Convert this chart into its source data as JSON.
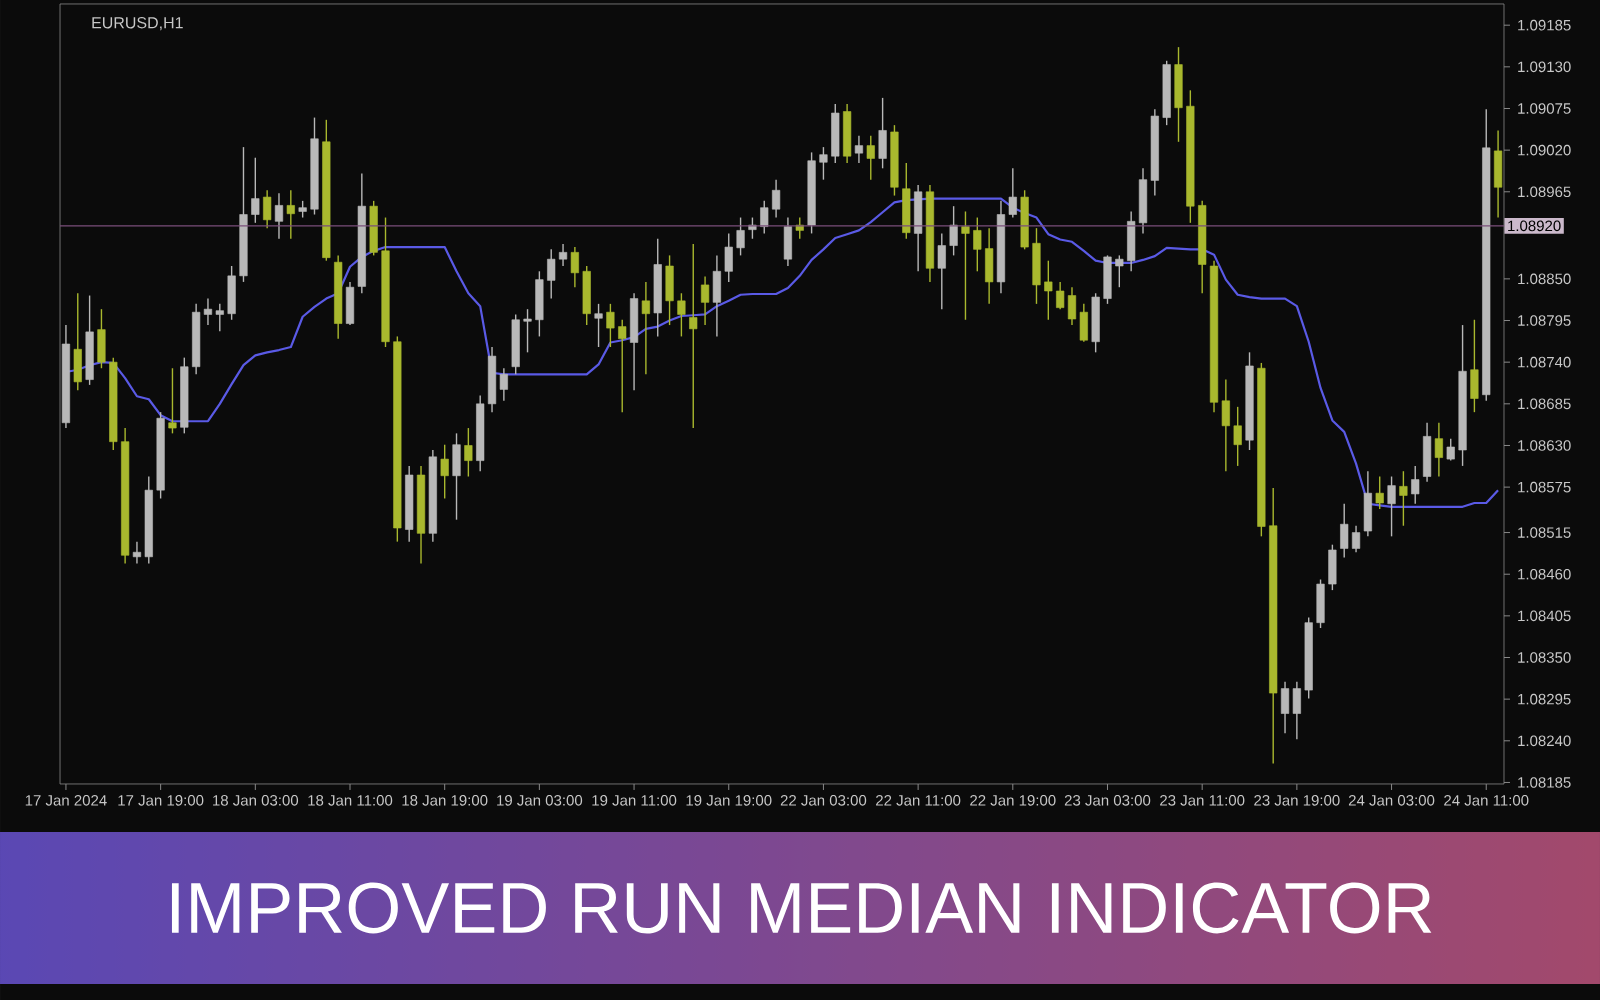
{
  "chart_data": {
    "type": "candlestick",
    "title": "IMPROVED RUN MEDIAN INDICATOR",
    "subtitle": "EURUSD,H1",
    "categories": [
      "17 Jan 2024",
      null,
      null,
      null,
      null,
      null,
      null,
      null,
      "17 Jan 19:00",
      null,
      null,
      null,
      null,
      null,
      null,
      null,
      "18 Jan 03:00",
      null,
      null,
      null,
      null,
      null,
      null,
      null,
      "18 Jan 11:00",
      null,
      null,
      null,
      null,
      null,
      null,
      null,
      "18 Jan 19:00",
      null,
      null,
      null,
      null,
      null,
      null,
      null,
      "19 Jan 03:00",
      null,
      null,
      null,
      null,
      null,
      null,
      null,
      "19 Jan 11:00",
      null,
      null,
      null,
      null,
      null,
      null,
      null,
      "19 Jan 19:00",
      null,
      null,
      null,
      null,
      null,
      null,
      null,
      "22 Jan 03:00",
      null,
      null,
      null,
      null,
      null,
      null,
      null,
      "22 Jan 11:00",
      null,
      null,
      null,
      null,
      null,
      null,
      null,
      "22 Jan 19:00",
      null,
      null,
      null,
      null,
      null,
      null,
      null,
      "23 Jan 03:00",
      null,
      null,
      null,
      null,
      null,
      null,
      null,
      "23 Jan 11:00",
      null,
      null,
      null,
      null,
      null,
      null,
      null,
      "23 Jan 19:00",
      null,
      null,
      null,
      null,
      null,
      null,
      null,
      "24 Jan 03:00",
      null,
      null,
      null,
      null,
      null,
      null,
      null,
      "24 Jan 11:00",
      null
    ],
    "ohlc": [
      [
        1.0866,
        1.08789,
        1.08653,
        1.08764
      ],
      [
        1.08757,
        1.08831,
        1.08703,
        1.08714
      ],
      [
        1.08717,
        1.08828,
        1.0871,
        1.0878
      ],
      [
        1.08783,
        1.0881,
        1.08732,
        1.0874
      ],
      [
        1.0874,
        1.08746,
        1.08624,
        1.08635
      ],
      [
        1.08635,
        1.08653,
        1.08474,
        1.08485
      ],
      [
        1.08483,
        1.08503,
        1.08474,
        1.08489
      ],
      [
        1.08483,
        1.08589,
        1.08474,
        1.08571
      ],
      [
        1.08571,
        1.08674,
        1.0856,
        1.08666
      ],
      [
        1.0866,
        1.08732,
        1.08646,
        1.08653
      ],
      [
        1.08654,
        1.08746,
        1.08646,
        1.08734
      ],
      [
        1.08734,
        1.08817,
        1.08724,
        1.08806
      ],
      [
        1.08803,
        1.08824,
        1.08789,
        1.0881
      ],
      [
        1.08803,
        1.08817,
        1.08781,
        1.08808
      ],
      [
        1.08804,
        1.08867,
        1.08796,
        1.08854
      ],
      [
        1.08854,
        1.09024,
        1.08846,
        1.08935
      ],
      [
        1.08935,
        1.0901,
        1.08924,
        1.08956
      ],
      [
        1.08958,
        1.08967,
        1.08917,
        1.08928
      ],
      [
        1.08926,
        1.08963,
        1.08903,
        1.08947
      ],
      [
        1.08947,
        1.08967,
        1.08903,
        1.08936
      ],
      [
        1.08939,
        1.08953,
        1.08931,
        1.08944
      ],
      [
        1.08942,
        1.09063,
        1.08935,
        1.09035
      ],
      [
        1.09031,
        1.0906,
        1.08874,
        1.08878
      ],
      [
        1.08872,
        1.08881,
        1.08771,
        1.08791
      ],
      [
        1.08791,
        1.08846,
        1.08789,
        1.08839
      ],
      [
        1.0884,
        1.08989,
        1.08831,
        1.08946
      ],
      [
        1.08946,
        1.08953,
        1.08881,
        1.08885
      ],
      [
        1.08887,
        1.08931,
        1.0876,
        1.08767
      ],
      [
        1.08767,
        1.08774,
        1.08503,
        1.08521
      ],
      [
        1.08519,
        1.08603,
        1.08503,
        1.08591
      ],
      [
        1.08591,
        1.08603,
        1.08474,
        1.08514
      ],
      [
        1.08514,
        1.08624,
        1.08503,
        1.08615
      ],
      [
        1.08612,
        1.08631,
        1.0856,
        1.0859
      ],
      [
        1.0859,
        1.08646,
        1.08532,
        1.08631
      ],
      [
        1.0863,
        1.08653,
        1.08589,
        1.0861
      ],
      [
        1.0861,
        1.08696,
        1.08596,
        1.08685
      ],
      [
        1.08685,
        1.0876,
        1.08674,
        1.08748
      ],
      [
        1.08704,
        1.08732,
        1.08689,
        1.08724
      ],
      [
        1.08734,
        1.08803,
        1.08724,
        1.08796
      ],
      [
        1.08794,
        1.0881,
        1.08753,
        1.08797
      ],
      [
        1.08796,
        1.0886,
        1.08774,
        1.08849
      ],
      [
        1.08848,
        1.08889,
        1.08824,
        1.08876
      ],
      [
        1.08876,
        1.08896,
        1.08867,
        1.08885
      ],
      [
        1.08885,
        1.08892,
        1.08839,
        1.08858
      ],
      [
        1.0886,
        1.08867,
        1.08789,
        1.08804
      ],
      [
        1.08798,
        1.08817,
        1.0876,
        1.08804
      ],
      [
        1.08806,
        1.08817,
        1.0876,
        1.08785
      ],
      [
        1.08787,
        1.08796,
        1.08674,
        1.08771
      ],
      [
        1.08766,
        1.08831,
        1.08703,
        1.08824
      ],
      [
        1.08821,
        1.08846,
        1.08724,
        1.08804
      ],
      [
        1.08805,
        1.08903,
        1.08774,
        1.08869
      ],
      [
        1.08867,
        1.08881,
        1.08789,
        1.08821
      ],
      [
        1.08821,
        1.08831,
        1.08774,
        1.08803
      ],
      [
        1.08799,
        1.08896,
        1.08653,
        1.08784
      ],
      [
        1.08842,
        1.08853,
        1.08789,
        1.08819
      ],
      [
        1.08819,
        1.08881,
        1.08774,
        1.0886
      ],
      [
        1.0886,
        1.0891,
        1.08846,
        1.08892
      ],
      [
        1.08891,
        1.08931,
        1.08881,
        1.08914
      ],
      [
        1.08915,
        1.08931,
        1.08903,
        1.08921
      ],
      [
        1.08919,
        1.08953,
        1.0891,
        1.08944
      ],
      [
        1.08942,
        1.08981,
        1.08931,
        1.08967
      ],
      [
        1.08876,
        1.08931,
        1.08867,
        1.08919
      ],
      [
        1.08921,
        1.08931,
        1.08903,
        1.08914
      ],
      [
        1.08921,
        1.09017,
        1.0891,
        1.09006
      ],
      [
        1.09004,
        1.09024,
        1.08981,
        1.09014
      ],
      [
        1.09012,
        1.09081,
        1.09003,
        1.09069
      ],
      [
        1.09071,
        1.09081,
        1.09003,
        1.09012
      ],
      [
        1.09016,
        1.09039,
        1.09003,
        1.09026
      ],
      [
        1.09026,
        1.09039,
        1.08981,
        1.09009
      ],
      [
        1.09009,
        1.09089,
        1.08996,
        1.09046
      ],
      [
        1.09044,
        1.09053,
        1.0896,
        1.08971
      ],
      [
        1.08969,
        1.09003,
        1.08903,
        1.08911
      ],
      [
        1.0891,
        1.08974,
        1.0886,
        1.08965
      ],
      [
        1.08965,
        1.08974,
        1.08846,
        1.08864
      ],
      [
        1.08864,
        1.0891,
        1.0881,
        1.08894
      ],
      [
        1.08894,
        1.08946,
        1.08881,
        1.08921
      ],
      [
        1.08919,
        1.08939,
        1.08796,
        1.0891
      ],
      [
        1.08914,
        1.08931,
        1.0886,
        1.08889
      ],
      [
        1.0889,
        1.08917,
        1.08817,
        1.08846
      ],
      [
        1.08846,
        1.08953,
        1.08831,
        1.08935
      ],
      [
        1.08935,
        1.08996,
        1.08931,
        1.08958
      ],
      [
        1.08958,
        1.08967,
        1.08889,
        1.08892
      ],
      [
        1.08897,
        1.08917,
        1.08817,
        1.08842
      ],
      [
        1.08846,
        1.08874,
        1.08796,
        1.08834
      ],
      [
        1.08834,
        1.08846,
        1.0881,
        1.08812
      ],
      [
        1.08828,
        1.08839,
        1.08789,
        1.08797
      ],
      [
        1.08806,
        1.08817,
        1.08767,
        1.08769
      ],
      [
        1.08767,
        1.08831,
        1.08753,
        1.08826
      ],
      [
        1.08824,
        1.08881,
        1.08817,
        1.08879
      ],
      [
        1.08867,
        1.08881,
        1.08839,
        1.08876
      ],
      [
        1.08874,
        1.08939,
        1.0886,
        1.08926
      ],
      [
        1.08924,
        1.08996,
        1.0891,
        1.08981
      ],
      [
        1.0898,
        1.09074,
        1.0896,
        1.09065
      ],
      [
        1.09063,
        1.09138,
        1.09053,
        1.09133
      ],
      [
        1.09133,
        1.09156,
        1.09031,
        1.09076
      ],
      [
        1.09078,
        1.09099,
        1.08924,
        1.08946
      ],
      [
        1.08947,
        1.08953,
        1.08831,
        1.08869
      ],
      [
        1.08867,
        1.08874,
        1.08674,
        1.08687
      ],
      [
        1.08689,
        1.08717,
        1.08596,
        1.08656
      ],
      [
        1.08656,
        1.08681,
        1.08603,
        1.08631
      ],
      [
        1.08637,
        1.08753,
        1.08624,
        1.08735
      ],
      [
        1.08732,
        1.08739,
        1.0851,
        1.08523
      ],
      [
        1.08524,
        1.08574,
        1.0821,
        1.08303
      ],
      [
        1.08276,
        1.08318,
        1.0825,
        1.08309
      ],
      [
        1.08276,
        1.08318,
        1.08242,
        1.08309
      ],
      [
        1.08307,
        1.08403,
        1.08296,
        1.08396
      ],
      [
        1.08396,
        1.08453,
        1.08389,
        1.08447
      ],
      [
        1.08447,
        1.08499,
        1.08439,
        1.08492
      ],
      [
        1.08494,
        1.08553,
        1.08482,
        1.08526
      ],
      [
        1.08494,
        1.08524,
        1.08489,
        1.08515
      ],
      [
        1.08517,
        1.08596,
        1.0851,
        1.08567
      ],
      [
        1.08567,
        1.08589,
        1.08546,
        1.08554
      ],
      [
        1.08553,
        1.08589,
        1.0851,
        1.08577
      ],
      [
        1.08576,
        1.08596,
        1.08524,
        1.08564
      ],
      [
        1.08566,
        1.08603,
        1.08553,
        1.08585
      ],
      [
        1.08589,
        1.0866,
        1.08582,
        1.08642
      ],
      [
        1.08639,
        1.0866,
        1.08589,
        1.08614
      ],
      [
        1.08612,
        1.08639,
        1.0861,
        1.08628
      ],
      [
        1.08624,
        1.08789,
        1.08603,
        1.08728
      ],
      [
        1.0873,
        1.08796,
        1.08674,
        1.08692
      ],
      [
        1.08697,
        1.09074,
        1.08689,
        1.09023
      ],
      [
        1.09019,
        1.09046,
        1.08931,
        1.08971
      ]
    ],
    "colors": [
      "#b8b8b8",
      "#a9b82e",
      "#b8b8b8",
      "#a9b82e",
      "#a9b82e",
      "#a9b82e",
      "#b8b8b8",
      "#b8b8b8",
      "#b8b8b8",
      "#a9b82e",
      "#b8b8b8",
      "#b8b8b8",
      "#b8b8b8",
      "#b8b8b8",
      "#b8b8b8",
      "#b8b8b8",
      "#b8b8b8",
      "#a9b82e",
      "#b8b8b8",
      "#a9b82e",
      "#b8b8b8",
      "#b8b8b8",
      "#a9b82e",
      "#a9b82e",
      "#b8b8b8",
      "#b8b8b8",
      "#a9b82e",
      "#a9b82e",
      "#a9b82e",
      "#b8b8b8",
      "#a9b82e",
      "#b8b8b8",
      "#a9b82e",
      "#b8b8b8",
      "#a9b82e",
      "#b8b8b8",
      "#b8b8b8",
      "#b8b8b8",
      "#b8b8b8",
      "#b8b8b8",
      "#b8b8b8",
      "#b8b8b8",
      "#b8b8b8",
      "#a9b82e",
      "#a9b82e",
      "#b8b8b8",
      "#a9b82e",
      "#a9b82e",
      "#b8b8b8",
      "#a9b82e",
      "#b8b8b8",
      "#a9b82e",
      "#a9b82e",
      "#a9b82e",
      "#a9b82e",
      "#b8b8b8",
      "#b8b8b8",
      "#b8b8b8",
      "#b8b8b8",
      "#b8b8b8",
      "#b8b8b8",
      "#b8b8b8",
      "#a9b82e",
      "#b8b8b8",
      "#b8b8b8",
      "#b8b8b8",
      "#a9b82e",
      "#b8b8b8",
      "#a9b82e",
      "#b8b8b8",
      "#a9b82e",
      "#a9b82e",
      "#b8b8b8",
      "#a9b82e",
      "#b8b8b8",
      "#b8b8b8",
      "#a9b82e",
      "#a9b82e",
      "#a9b82e",
      "#b8b8b8",
      "#b8b8b8",
      "#a9b82e",
      "#a9b82e",
      "#a9b82e",
      "#a9b82e",
      "#a9b82e",
      "#a9b82e",
      "#b8b8b8",
      "#b8b8b8",
      "#b8b8b8",
      "#b8b8b8",
      "#b8b8b8",
      "#b8b8b8",
      "#b8b8b8",
      "#a9b82e",
      "#a9b82e",
      "#a9b82e",
      "#a9b82e",
      "#a9b82e",
      "#a9b82e",
      "#b8b8b8",
      "#a9b82e",
      "#a9b82e",
      "#b8b8b8",
      "#b8b8b8",
      "#b8b8b8",
      "#b8b8b8",
      "#b8b8b8",
      "#b8b8b8",
      "#b8b8b8",
      "#b8b8b8",
      "#a9b82e",
      "#b8b8b8",
      "#a9b82e",
      "#b8b8b8",
      "#b8b8b8",
      "#a9b82e",
      "#b8b8b8",
      "#b8b8b8",
      "#a9b82e",
      "#b8b8b8",
      "#a9b82e"
    ],
    "series": [
      {
        "type": "line",
        "color": "#5a5ae6",
        "values": [
          1.08727,
          1.0873,
          1.08736,
          1.0874,
          1.08739,
          1.08719,
          1.08695,
          1.08691,
          1.0867,
          1.08662,
          1.08662,
          1.08662,
          1.08662,
          1.08685,
          1.08711,
          1.08736,
          1.08749,
          1.08753,
          1.08756,
          1.0876,
          1.088,
          1.08813,
          1.08824,
          1.08831,
          1.08866,
          1.08879,
          1.08887,
          1.08892,
          1.08892,
          1.08892,
          1.08892,
          1.08892,
          1.08892,
          1.0886,
          1.08831,
          1.08814,
          1.08726,
          1.08724,
          1.08724,
          1.08724,
          1.08724,
          1.08724,
          1.08724,
          1.08724,
          1.08724,
          1.08737,
          1.08766,
          1.08769,
          1.08773,
          1.08784,
          1.08787,
          1.08795,
          1.08801,
          1.08802,
          1.08803,
          1.08814,
          1.08821,
          1.08829,
          1.0883,
          1.0883,
          1.0883,
          1.08838,
          1.08854,
          1.08875,
          1.08889,
          1.08904,
          1.08909,
          1.08914,
          1.08925,
          1.08938,
          1.08951,
          1.08954,
          1.08955,
          1.08956,
          1.08956,
          1.08956,
          1.08956,
          1.08956,
          1.08956,
          1.08956,
          1.08944,
          1.08937,
          1.08931,
          1.08909,
          1.08902,
          1.08899,
          1.08887,
          1.08874,
          1.08871,
          1.08871,
          1.08871,
          1.08875,
          1.0888,
          1.08891,
          1.0889,
          1.08889,
          1.08889,
          1.08882,
          1.08849,
          1.08829,
          1.08826,
          1.08824,
          1.08824,
          1.08824,
          1.08814,
          1.08767,
          1.08706,
          1.08663,
          1.08648,
          1.08606,
          1.08553,
          1.08551,
          1.08549,
          1.08549,
          1.08549,
          1.08549,
          1.08549,
          1.08549,
          1.08549,
          1.08554,
          1.08554,
          1.08571
        ]
      }
    ],
    "ylim": [
      1.08183,
      1.09213
    ],
    "yticks": [
      1.09185,
      {
        "value": 1.0913,
        "label": "1.09130"
      },
      1.09075,
      {
        "value": 1.0902,
        "label": "1.09020"
      },
      1.08965,
      {
        "value": 1.0885,
        "label": "1.08850"
      },
      1.08795,
      {
        "value": 1.0874,
        "label": "1.08740"
      },
      1.08685,
      {
        "value": 1.0863,
        "label": "1.08630"
      },
      1.08575,
      1.08515,
      {
        "value": 1.0846,
        "label": "1.08460"
      },
      1.08405,
      {
        "value": 1.0835,
        "label": "1.08350"
      },
      1.08295,
      {
        "value": 1.0824,
        "label": "1.08240"
      },
      1.08185
    ],
    "ref_lines": [
      {
        "axis": "y",
        "value": 1.0892,
        "label": "1.08920",
        "color": "#7b4f7b"
      }
    ]
  }
}
